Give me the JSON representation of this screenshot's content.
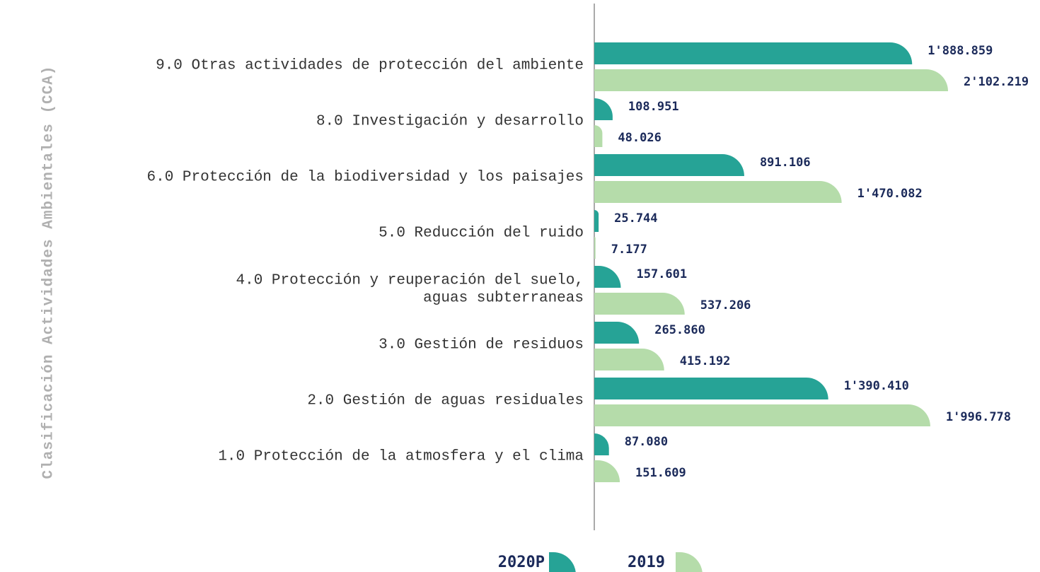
{
  "chart_data": {
    "type": "hbar",
    "y_label": "Clasificación Actividades Ambientales (CCA)",
    "categories": [
      "9.0 Otras actividades de protección del ambiente",
      "8.0 Investigación y desarrollo",
      "6.0 Protección de la biodiversidad y los paisajes",
      "5.0 Reducción del ruido",
      "4.0 Protección y reuperación del suelo,\naguas subterraneas",
      "3.0 Gestión de residuos",
      "2.0 Gestión de aguas residuales",
      "1.0 Protección de la atmosfera y el clima"
    ],
    "series": [
      {
        "name": "2020P",
        "color": "#26a396",
        "values": [
          1888859,
          108951,
          891106,
          25744,
          157601,
          265860,
          1390410,
          87080
        ],
        "value_labels": [
          "1'888.859",
          "108.951",
          "891.106",
          "25.744",
          "157.601",
          "265.860",
          "1'390.410",
          "87.080"
        ]
      },
      {
        "name": "2019",
        "color": "#b5dcaa",
        "values": [
          2102219,
          48026,
          1470082,
          7177,
          537206,
          415192,
          1996778,
          151609
        ],
        "value_labels": [
          "2'102.219",
          "48.026",
          "1'470.082",
          "7.177",
          "537.206",
          "415.192",
          "1'996.778",
          "151.609"
        ]
      }
    ]
  }
}
